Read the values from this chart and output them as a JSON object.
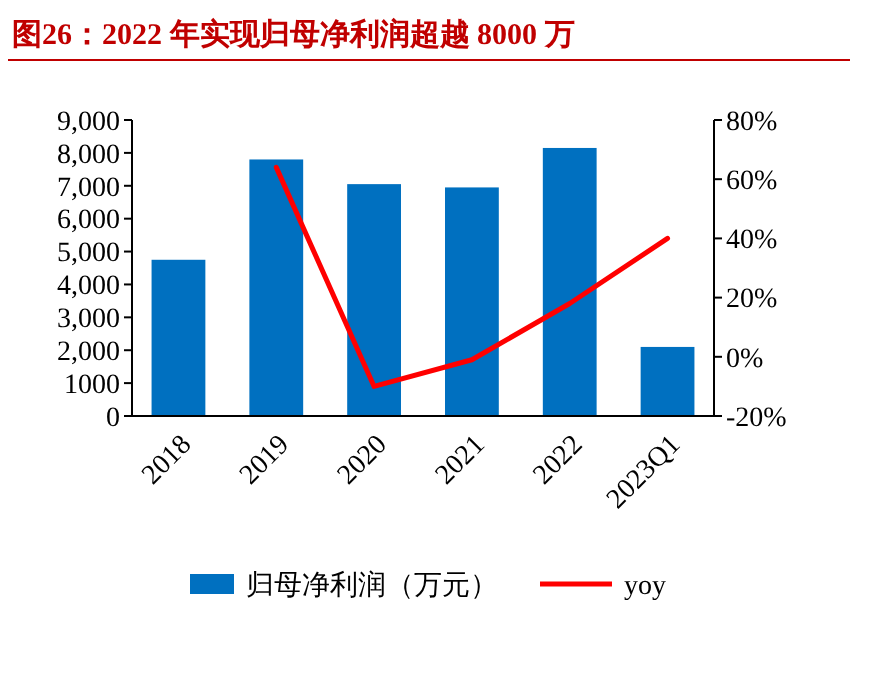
{
  "chart_data": {
    "type": "bar",
    "title": "图26：2022 年实现归母净利润超越 8000 万",
    "categories": [
      "2018",
      "2019",
      "2020",
      "2021",
      "2022",
      "2023Q1"
    ],
    "series": [
      {
        "name": "归母净利润（万元）",
        "color": "#0070c0",
        "values": [
          4750,
          7800,
          7050,
          6950,
          8150,
          2100
        ]
      },
      {
        "name": "yoy",
        "type": "line",
        "axis": "y2",
        "color": "#ff0000",
        "values": [
          null,
          64,
          -10,
          -1,
          18,
          40
        ]
      }
    ],
    "ylim": [
      0,
      9000
    ],
    "yticks": [
      0,
      1000,
      {
        "value": 2000,
        "label": "2,000"
      },
      {
        "value": 3000,
        "label": "3,000"
      },
      {
        "value": 4000,
        "label": "4,000"
      },
      {
        "value": 5000,
        "label": "5,000"
      },
      {
        "value": 6000,
        "label": "6,000"
      },
      {
        "value": 7000,
        "label": "7,000"
      },
      {
        "value": 8000,
        "label": "8,000"
      },
      {
        "value": 9000,
        "label": "9,000"
      }
    ],
    "y2lim": [
      -20,
      80
    ],
    "y2ticks": [
      {
        "value": -20,
        "label": "-20%"
      },
      {
        "value": 0,
        "label": "0%"
      },
      {
        "value": 20,
        "label": "20%"
      },
      {
        "value": 40,
        "label": "40%"
      },
      {
        "value": 60,
        "label": "60%"
      },
      {
        "value": 80,
        "label": "80%"
      }
    ],
    "legend": "bottom"
  }
}
